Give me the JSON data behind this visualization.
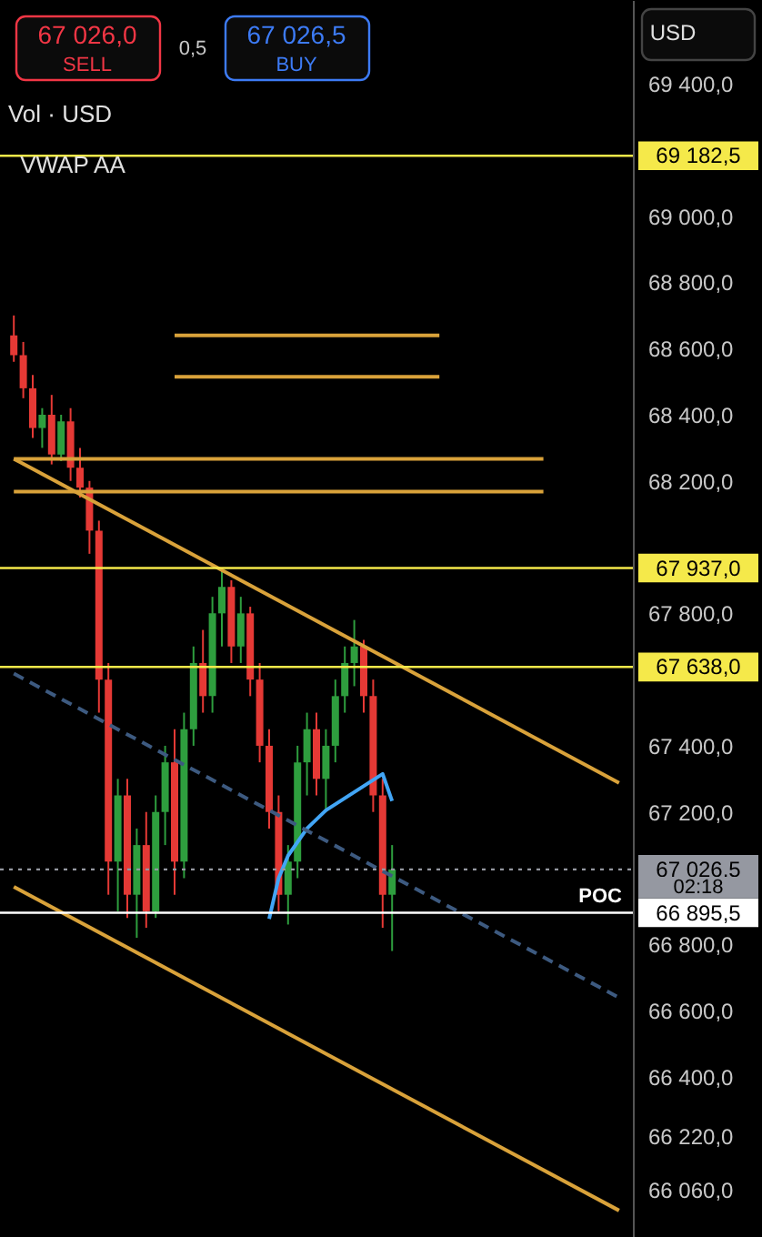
{
  "chart_data": {
    "type": "candlestick",
    "tick_labels": "y",
    "grid": false,
    "categories": [
      null,
      null,
      null,
      null,
      null,
      null,
      null,
      null,
      null,
      null,
      null,
      null,
      null,
      null,
      null,
      null,
      null,
      null,
      null,
      null,
      null,
      null,
      null,
      null,
      null,
      null,
      null,
      null,
      null,
      null,
      null,
      null,
      null,
      null,
      null,
      null,
      null,
      null,
      null,
      null,
      null,
      null,
      null,
      null,
      null,
      null,
      null,
      null,
      null,
      null,
      null,
      null,
      null,
      null,
      null,
      null,
      null,
      null,
      null,
      null,
      null,
      null,
      null,
      null,
      null
    ],
    "ylim": [
      65916,
      69653
    ],
    "yticks": [
      {
        "value": 69400,
        "label": "69 400,0"
      },
      {
        "value": 69000,
        "label": "69 000,0"
      },
      {
        "value": 68800,
        "label": "68 800,0"
      },
      {
        "value": 68600,
        "label": "68 600,0"
      },
      {
        "value": 68400,
        "label": "68 400,0"
      },
      {
        "value": 68200,
        "label": "68 200,0"
      },
      {
        "value": 67800,
        "label": "67 800,0"
      },
      {
        "value": 67400,
        "label": "67 400,0"
      },
      {
        "value": 67200,
        "label": "67 200,0"
      },
      {
        "value": 66800,
        "label": "66 800,0"
      },
      {
        "value": 66600,
        "label": "66 600,0"
      },
      {
        "value": 66400,
        "label": "66 400,0"
      },
      {
        "value": 66220,
        "label": "66 220,0"
      },
      {
        "value": 66060,
        "label": "66 060,0"
      }
    ],
    "series": [
      {
        "ohlc": [
          [
            68640,
            68700,
            68560,
            68580
          ],
          [
            68580,
            68620,
            68450,
            68480
          ],
          [
            68480,
            68520,
            68330,
            68360
          ],
          [
            68360,
            68420,
            68300,
            68400
          ],
          [
            68400,
            68460,
            68250,
            68280
          ],
          [
            68280,
            68400,
            68260,
            68380
          ],
          [
            68380,
            68420,
            68200,
            68240
          ],
          [
            68240,
            68300,
            68150,
            68180
          ],
          [
            68180,
            68200,
            67980,
            68050
          ],
          [
            68050,
            68080,
            67500,
            67600
          ],
          [
            67600,
            67650,
            66950,
            67050
          ],
          [
            67050,
            67300,
            66900,
            67250
          ],
          [
            67250,
            67300,
            66880,
            66950
          ],
          [
            66950,
            67150,
            66820,
            67100
          ],
          [
            67100,
            67200,
            66850,
            66900
          ],
          [
            66900,
            67250,
            66880,
            67200
          ],
          [
            67200,
            67400,
            67100,
            67350
          ],
          [
            67350,
            67450,
            66950,
            67050
          ],
          [
            67050,
            67500,
            67000,
            67450
          ],
          [
            67450,
            67700,
            67400,
            67650
          ],
          [
            67650,
            67750,
            67500,
            67550
          ],
          [
            67550,
            67850,
            67500,
            67800
          ],
          [
            67800,
            67937,
            67700,
            67880
          ],
          [
            67880,
            67900,
            67650,
            67700
          ],
          [
            67700,
            67850,
            67650,
            67800
          ],
          [
            67800,
            67820,
            67550,
            67600
          ],
          [
            67600,
            67650,
            67350,
            67400
          ],
          [
            67400,
            67450,
            67150,
            67200
          ],
          [
            67200,
            67250,
            66900,
            66950
          ],
          [
            66950,
            67100,
            66860,
            67050
          ],
          [
            67050,
            67400,
            67000,
            67350
          ],
          [
            67350,
            67500,
            67250,
            67450
          ],
          [
            67450,
            67500,
            67250,
            67300
          ],
          [
            67300,
            67450,
            67200,
            67400
          ],
          [
            67400,
            67600,
            67350,
            67550
          ],
          [
            67550,
            67700,
            67500,
            67650
          ],
          [
            67650,
            67780,
            67580,
            67700
          ],
          [
            67700,
            67720,
            67500,
            67550
          ],
          [
            67550,
            67600,
            67200,
            67250
          ],
          [
            67250,
            67300,
            66850,
            66950
          ],
          [
            66950,
            67100,
            66780,
            67026.5
          ],
          null,
          null,
          null,
          null,
          null,
          null,
          null,
          null,
          null,
          null,
          null,
          null,
          null,
          null,
          null,
          null,
          null,
          null,
          null,
          null,
          null,
          null,
          null,
          null
        ],
        "colors": [
          "#e53935",
          "#e53935",
          "#e53935",
          "#2e9e3e",
          "#e53935",
          "#2e9e3e",
          "#e53935",
          "#e53935",
          "#e53935",
          "#e53935",
          "#e53935",
          "#2e9e3e",
          "#e53935",
          "#2e9e3e",
          "#e53935",
          "#2e9e3e",
          "#2e9e3e",
          "#e53935",
          "#2e9e3e",
          "#2e9e3e",
          "#e53935",
          "#2e9e3e",
          "#2e9e3e",
          "#e53935",
          "#2e9e3e",
          "#e53935",
          "#e53935",
          "#e53935",
          "#e53935",
          "#2e9e3e",
          "#2e9e3e",
          "#2e9e3e",
          "#e53935",
          "#2e9e3e",
          "#2e9e3e",
          "#2e9e3e",
          "#2e9e3e",
          "#e53935",
          "#e53935",
          "#e53935",
          "#2e9e3e",
          null,
          null,
          null,
          null,
          null,
          null,
          null,
          null,
          null,
          null,
          null,
          null,
          null,
          null,
          null,
          null,
          null,
          null,
          null,
          null,
          null,
          null,
          null,
          null
        ]
      },
      {
        "type": "line",
        "color": "#42a5f5",
        "line_style": "solid",
        "values": [
          null,
          null,
          null,
          null,
          null,
          null,
          null,
          null,
          null,
          null,
          null,
          null,
          null,
          null,
          null,
          null,
          null,
          null,
          null,
          null,
          null,
          null,
          null,
          null,
          null,
          null,
          null,
          66877,
          67000,
          67068,
          null,
          67150,
          null,
          67205,
          null,
          null,
          67260,
          null,
          null,
          67315,
          67233,
          null,
          null,
          null,
          null,
          null,
          null,
          null,
          null,
          null,
          null,
          null,
          null,
          null,
          null,
          null,
          null,
          null,
          null,
          null,
          null,
          null,
          null,
          null,
          null
        ]
      },
      {
        "type": "line",
        "color": "#d9a23a",
        "line_style": "solid",
        "values": [
          68267,
          null,
          null,
          null,
          null,
          null,
          null,
          null,
          null,
          null,
          null,
          null,
          null,
          null,
          null,
          null,
          null,
          null,
          null,
          null,
          null,
          null,
          null,
          null,
          null,
          null,
          null,
          null,
          null,
          null,
          null,
          null,
          null,
          null,
          null,
          null,
          null,
          null,
          null,
          null,
          null,
          null,
          null,
          null,
          null,
          null,
          null,
          null,
          null,
          null,
          null,
          null,
          null,
          null,
          null,
          null,
          null,
          null,
          null,
          null,
          null,
          null,
          null,
          null,
          67288
        ]
      },
      {
        "type": "line",
        "color": "#d9a23a",
        "line_style": "solid",
        "values": [
          66974,
          null,
          null,
          null,
          null,
          null,
          null,
          null,
          null,
          null,
          null,
          null,
          null,
          null,
          null,
          null,
          null,
          null,
          null,
          null,
          null,
          null,
          null,
          null,
          null,
          null,
          null,
          null,
          null,
          null,
          null,
          null,
          null,
          null,
          null,
          null,
          null,
          null,
          null,
          null,
          null,
          null,
          null,
          null,
          null,
          null,
          null,
          null,
          null,
          null,
          null,
          null,
          null,
          null,
          null,
          null,
          null,
          null,
          null,
          null,
          null,
          null,
          null,
          null,
          65996
        ]
      },
      {
        "type": "line",
        "color": "#3d5a80",
        "line_style": "dashed",
        "values": [
          67618,
          null,
          null,
          null,
          null,
          null,
          null,
          null,
          null,
          null,
          null,
          null,
          null,
          null,
          null,
          null,
          null,
          null,
          null,
          null,
          null,
          null,
          null,
          null,
          null,
          null,
          null,
          null,
          null,
          null,
          null,
          null,
          null,
          null,
          null,
          null,
          null,
          null,
          null,
          null,
          null,
          null,
          null,
          null,
          null,
          null,
          null,
          null,
          null,
          null,
          null,
          null,
          null,
          null,
          null,
          null,
          null,
          null,
          null,
          null,
          null,
          null,
          null,
          null,
          66639
        ]
      },
      {
        "type": "line",
        "color": "#d9a23a",
        "line_style": "solid",
        "values": [
          68267,
          null,
          null,
          null,
          null,
          null,
          null,
          null,
          null,
          null,
          null,
          null,
          null,
          null,
          null,
          null,
          null,
          null,
          null,
          null,
          null,
          null,
          null,
          null,
          null,
          null,
          null,
          null,
          null,
          null,
          null,
          null,
          null,
          null,
          null,
          null,
          null,
          null,
          null,
          null,
          null,
          null,
          null,
          null,
          null,
          null,
          null,
          null,
          null,
          null,
          null,
          null,
          null,
          null,
          null,
          null,
          68267,
          null,
          null,
          null,
          null,
          null,
          null,
          null,
          null
        ]
      },
      {
        "type": "line",
        "color": "#d9a23a",
        "line_style": "solid",
        "values": [
          68168,
          null,
          null,
          null,
          null,
          null,
          null,
          null,
          null,
          null,
          null,
          null,
          null,
          null,
          null,
          null,
          null,
          null,
          null,
          null,
          null,
          null,
          null,
          null,
          null,
          null,
          null,
          null,
          null,
          null,
          null,
          null,
          null,
          null,
          null,
          null,
          null,
          null,
          null,
          null,
          null,
          null,
          null,
          null,
          null,
          null,
          null,
          null,
          null,
          null,
          null,
          null,
          null,
          null,
          null,
          null,
          68168,
          null,
          null,
          null,
          null,
          null,
          null,
          null,
          null
        ]
      },
      {
        "type": "line",
        "color": "#d9a23a",
        "line_style": "solid",
        "values": [
          null,
          null,
          null,
          null,
          null,
          null,
          null,
          null,
          null,
          null,
          null,
          null,
          null,
          null,
          null,
          null,
          null,
          68640,
          null,
          null,
          null,
          null,
          null,
          null,
          null,
          null,
          null,
          null,
          null,
          null,
          null,
          null,
          null,
          null,
          null,
          null,
          null,
          null,
          null,
          null,
          null,
          null,
          null,
          null,
          null,
          68640,
          null,
          null,
          null,
          null,
          null,
          null,
          null,
          null,
          null,
          null,
          null,
          null,
          null,
          null,
          null,
          null,
          null,
          null,
          null
        ]
      },
      {
        "type": "line",
        "color": "#d9a23a",
        "line_style": "solid",
        "values": [
          null,
          null,
          null,
          null,
          null,
          null,
          null,
          null,
          null,
          null,
          null,
          null,
          null,
          null,
          null,
          null,
          null,
          68515,
          null,
          null,
          null,
          null,
          null,
          null,
          null,
          null,
          null,
          null,
          null,
          null,
          null,
          null,
          null,
          null,
          null,
          null,
          null,
          null,
          null,
          null,
          null,
          null,
          null,
          null,
          null,
          68515,
          null,
          null,
          null,
          null,
          null,
          null,
          null,
          null,
          null,
          null,
          null,
          null,
          null,
          null,
          null,
          null,
          null,
          null,
          null
        ]
      }
    ],
    "ref_lines": [
      {
        "axis": "y",
        "value": 69182.5,
        "label": "69 182,5",
        "color": "#f5e94a",
        "line_style": "solid"
      },
      {
        "axis": "y",
        "value": 67937,
        "label": "67 937,0",
        "color": "#f5e94a",
        "line_style": "solid"
      },
      {
        "axis": "y",
        "value": 67638,
        "label": "67 638,0",
        "color": "#f5e94a",
        "line_style": "solid"
      },
      {
        "axis": "y",
        "value": 67026.5,
        "label": "67 026,5",
        "color": "#9598a1",
        "line_style": "dotted"
      },
      {
        "axis": "y",
        "value": 66895.5,
        "label": "66 895,5",
        "color": "#ffffff",
        "line_style": "solid"
      }
    ],
    "annotations": [
      "67 026,0",
      "SELL",
      "0,5",
      "67 026,5",
      "BUY",
      "Vol · USD",
      "VWAP AA",
      "USD",
      "02:18",
      {
        "text": "POC",
        "y": 66895.5
      }
    ]
  }
}
